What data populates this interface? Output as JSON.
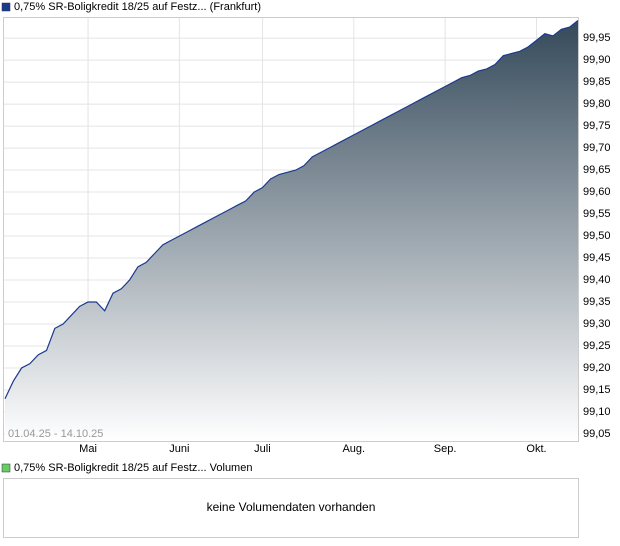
{
  "chart_data": {
    "type": "area",
    "series": [
      {
        "name": "0,75% SR-Boligkredit 18/25 auf Festz... (Frankfurt)",
        "color": "#1a3a8f",
        "values": [
          99.13,
          99.17,
          99.2,
          99.21,
          99.23,
          99.24,
          99.29,
          99.3,
          99.32,
          99.34,
          99.35,
          99.35,
          99.33,
          99.37,
          99.38,
          99.4,
          99.43,
          99.44,
          99.46,
          99.48,
          99.49,
          99.5,
          99.51,
          99.52,
          99.53,
          99.54,
          99.55,
          99.56,
          99.57,
          99.58,
          99.6,
          99.61,
          99.63,
          99.64,
          99.645,
          99.65,
          99.66,
          99.68,
          99.69,
          99.7,
          99.71,
          99.72,
          99.73,
          99.74,
          99.75,
          99.76,
          99.77,
          99.78,
          99.79,
          99.8,
          99.81,
          99.82,
          99.83,
          99.84,
          99.85,
          99.86,
          99.865,
          99.875,
          99.88,
          99.89,
          99.91,
          99.915,
          99.92,
          99.93,
          99.945,
          99.96,
          99.955,
          99.97,
          99.975,
          99.99
        ]
      }
    ],
    "categories": [
      null,
      null,
      null,
      null,
      null,
      null,
      null,
      null,
      null,
      null,
      "Mai",
      null,
      null,
      null,
      null,
      null,
      null,
      null,
      null,
      null,
      null,
      "Juni",
      null,
      null,
      null,
      null,
      null,
      null,
      null,
      null,
      null,
      "Juli",
      null,
      null,
      null,
      null,
      null,
      null,
      null,
      null,
      null,
      null,
      "Aug.",
      null,
      null,
      null,
      null,
      null,
      null,
      null,
      null,
      null,
      null,
      "Sep.",
      null,
      null,
      null,
      null,
      null,
      null,
      null,
      null,
      null,
      null,
      "Okt.",
      null,
      null,
      null,
      null,
      null
    ],
    "annotation": "01.04.25 - 14.10.25",
    "ylim": [
      99.034,
      99.998
    ],
    "yticks": [
      {
        "value": 99.05,
        "label": "99,05"
      },
      {
        "value": 99.1,
        "label": "99,10"
      },
      {
        "value": 99.15,
        "label": "99,15"
      },
      {
        "value": 99.2,
        "label": "99,20"
      },
      {
        "value": 99.25,
        "label": "99,25"
      },
      {
        "value": 99.3,
        "label": "99,30"
      },
      {
        "value": 99.35,
        "label": "99,35"
      },
      {
        "value": 99.4,
        "label": "99,40"
      },
      {
        "value": 99.45,
        "label": "99,45"
      },
      {
        "value": 99.5,
        "label": "99,50"
      },
      {
        "value": 99.55,
        "label": "99,55"
      },
      {
        "value": 99.6,
        "label": "99,60"
      },
      {
        "value": 99.65,
        "label": "99,65"
      },
      {
        "value": 99.7,
        "label": "99,70"
      },
      {
        "value": 99.75,
        "label": "99,75"
      },
      {
        "value": 99.8,
        "label": "99,80"
      },
      {
        "value": 99.85,
        "label": "99,85"
      },
      {
        "value": 99.9,
        "label": "99,90"
      },
      {
        "value": 99.95,
        "label": "99,95"
      }
    ],
    "grid": true
  },
  "volume_panel": {
    "legend": "0,75% SR-Boligkredit 18/25 auf Festz... Volumen",
    "message": "keine Volumendaten vorhanden"
  }
}
